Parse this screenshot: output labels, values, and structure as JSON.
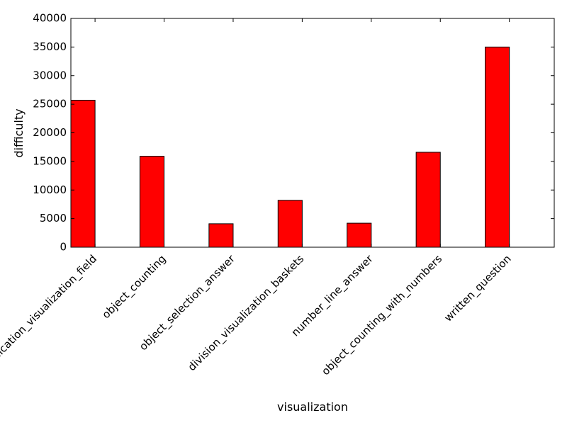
{
  "chart_data": {
    "type": "bar",
    "title": "",
    "xlabel": "visualization",
    "ylabel": "difficulty",
    "categories": [
      "multiplication_visualization_field",
      "object_counting",
      "object_selection_answer",
      "division_visualization_baskets",
      "number_line_answer",
      "object_counting_with_numbers",
      "written_question"
    ],
    "values": [
      25700,
      15900,
      4100,
      8200,
      4200,
      16600,
      35000
    ],
    "ylim": [
      0,
      40000
    ],
    "yticks": [
      0,
      5000,
      10000,
      15000,
      20000,
      25000,
      30000,
      35000,
      40000
    ],
    "grid": false,
    "legend": "none",
    "bar_color": "#ff0000",
    "edge_color": "#000000"
  }
}
